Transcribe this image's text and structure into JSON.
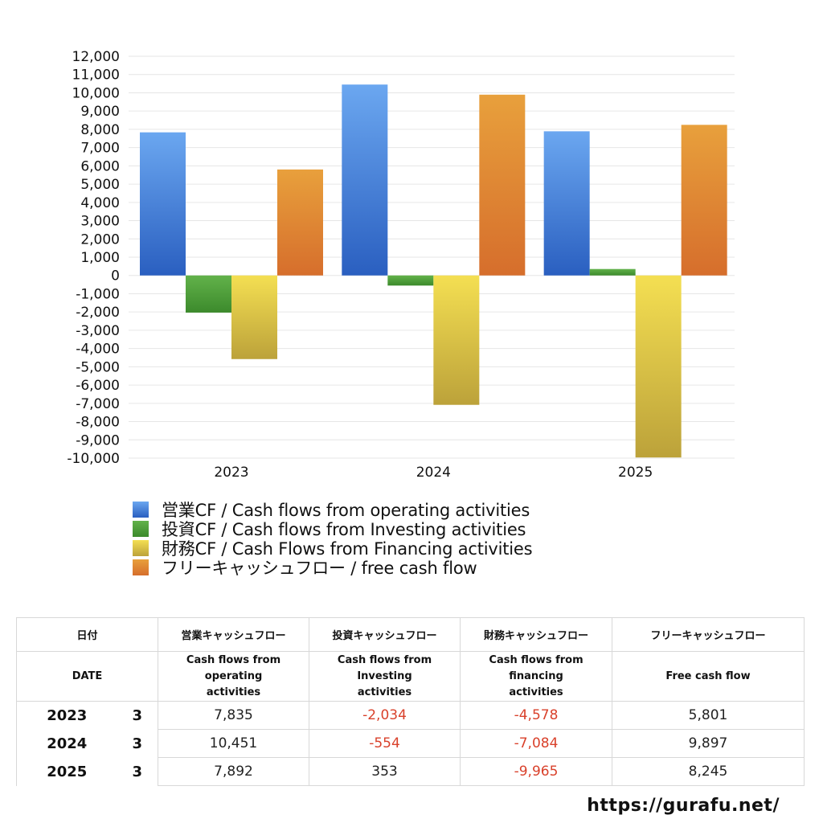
{
  "chart_data": {
    "type": "bar",
    "categories": [
      "2023",
      "2024",
      "2025"
    ],
    "series": [
      {
        "name": "営業CF / Cash flows from operating activities",
        "values": [
          7835,
          10451,
          7892
        ],
        "color_top": "#6ba7f0",
        "color_bottom": "#2a5fc0"
      },
      {
        "name": "投資CF / Cash flows from Investing activities",
        "values": [
          -2034,
          -554,
          353
        ],
        "color_top": "#62b24a",
        "color_bottom": "#3c8a2c"
      },
      {
        "name": "財務CF / Cash Flows from Financing activities",
        "values": [
          -4578,
          -7084,
          -9965
        ],
        "color_top": "#f4df52",
        "color_bottom": "#bca23a"
      },
      {
        "name": "フリーキャッシュフロー / free cash flow",
        "values": [
          5801,
          9897,
          8245
        ],
        "color_top": "#e8a03c",
        "color_bottom": "#d66e2c"
      }
    ],
    "ylim": [
      -10000,
      12000
    ],
    "yticks": [
      -10000,
      -9000,
      -8000,
      -7000,
      -6000,
      -5000,
      -4000,
      -3000,
      -2000,
      -1000,
      0,
      1000,
      2000,
      3000,
      4000,
      5000,
      6000,
      7000,
      8000,
      9000,
      10000,
      11000,
      12000
    ],
    "ytick_labels": [
      "-10,000",
      "-9,000",
      "-8,000",
      "-7,000",
      "-6,000",
      "-5,000",
      "-4,000",
      "-3,000",
      "-2,000",
      "-1,000",
      "0",
      "1,000",
      "2,000",
      "3,000",
      "4,000",
      "5,000",
      "6,000",
      "7,000",
      "8,000",
      "9,000",
      "10,000",
      "11,000",
      "12,000"
    ],
    "grid": true,
    "legend_position": "bottom"
  },
  "table": {
    "header1": [
      "日付",
      "営業キャッシュフロー",
      "投資キャッシュフロー",
      "財務キャッシュフロー",
      "フリーキャッシュフロー"
    ],
    "header2": [
      "DATE",
      "Cash flows from operating activities",
      "Cash flows from Investing activities",
      "Cash flows from financing activities",
      "Free cash flow"
    ],
    "rows": [
      {
        "year": "2023",
        "month": "3",
        "values": [
          "7,835",
          "-2,034",
          "-4,578",
          "5,801"
        ]
      },
      {
        "year": "2024",
        "month": "3",
        "values": [
          "10,451",
          "-554",
          "-7,084",
          "9,897"
        ]
      },
      {
        "year": "2025",
        "month": "3",
        "values": [
          "7,892",
          "353",
          "-9,965",
          "8,245"
        ]
      }
    ]
  },
  "brand": "https://gurafu.net/",
  "colors": {
    "negative_text": "#d9412b",
    "grid": "#e6e6e6"
  }
}
